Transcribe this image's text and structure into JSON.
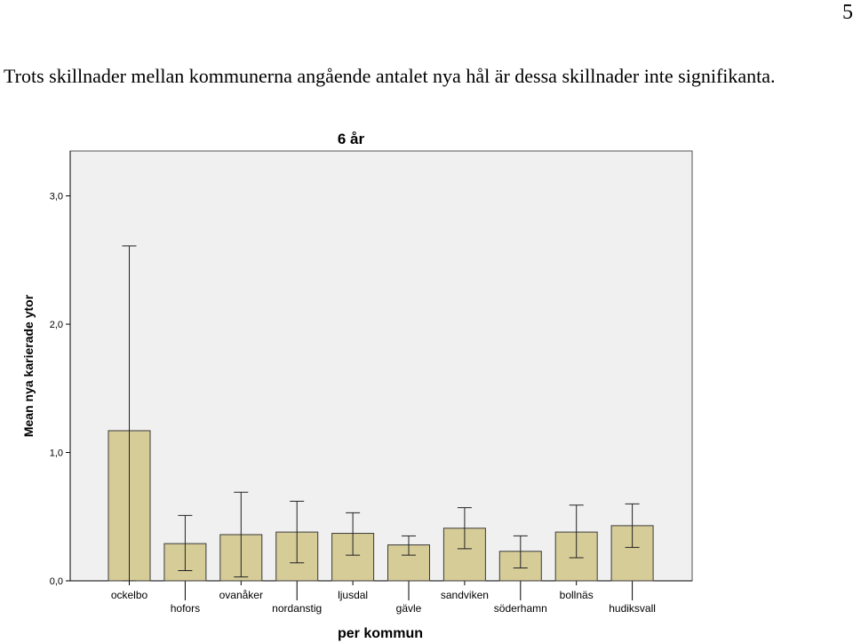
{
  "page": {
    "page_number": "5",
    "body_text": "Trots skillnader mellan kommunerna angående antalet nya hål är dessa skillnader inte signifikanta."
  },
  "chart_data": {
    "type": "bar",
    "title": "6 år",
    "xlabel": "per kommun",
    "ylabel": "Mean nya karierade ytor",
    "ylim": [
      0,
      3.35
    ],
    "yticks": [
      0,
      1,
      2,
      3
    ],
    "ytick_labels": [
      "0,0",
      "1,0",
      "2,0",
      "3,0"
    ],
    "categories": [
      "ockelbo",
      "hofors",
      "ovanåker",
      "nordanstig",
      "ljusdal",
      "gävle",
      "sandviken",
      "söderhamn",
      "bollnäs",
      "hudiksvall"
    ],
    "values": [
      1.17,
      0.29,
      0.36,
      0.38,
      0.37,
      0.28,
      0.41,
      0.23,
      0.38,
      0.43
    ],
    "error_low": [
      0.0,
      0.08,
      0.03,
      0.14,
      0.2,
      0.2,
      0.25,
      0.1,
      0.18,
      0.26
    ],
    "error_high": [
      2.61,
      0.51,
      0.69,
      0.62,
      0.53,
      0.35,
      0.57,
      0.35,
      0.59,
      0.6
    ],
    "grid": false,
    "legend": "none",
    "colors": {
      "bar_fill": "#d6cc98",
      "bar_stroke": "#3a3a3a",
      "plot_bg": "#f0f0f0",
      "frame": "#555555"
    }
  }
}
